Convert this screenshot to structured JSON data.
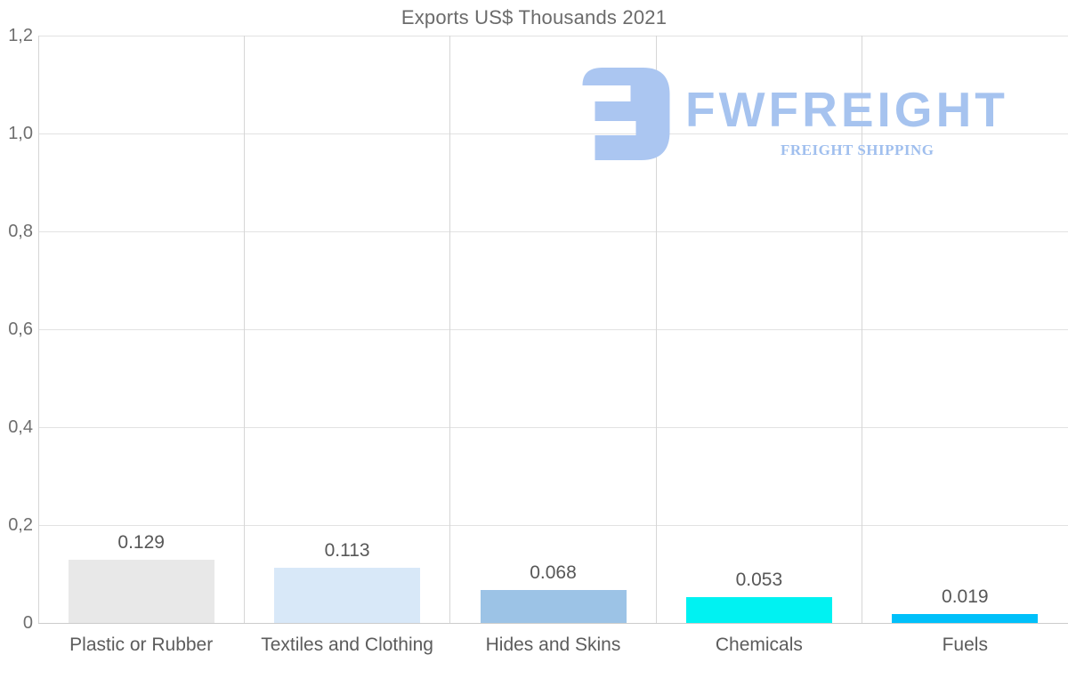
{
  "title": "Exports US$ Thousands 2021",
  "logo": {
    "name": "FWFREIGHT",
    "tagline": "FREIGHT SHIPPING",
    "icon_color": "#abc6f1",
    "text_color": "#a6c3ef"
  },
  "chart_data": {
    "type": "bar",
    "title": "Exports US$ Thousands 2021",
    "categories": [
      "Plastic or Rubber",
      "Textiles and Clothing",
      "Hides and Skins",
      "Chemicals",
      "Fuels"
    ],
    "values": [
      0.129,
      0.113,
      0.068,
      0.053,
      0.019
    ],
    "value_labels": [
      "0.129",
      "0.113",
      "0.068",
      "0.053",
      "0.019"
    ],
    "bar_colors": [
      "#e8e8e8",
      "#d8e8f8",
      "#9cc3e6",
      "#00f2f2",
      "#00c0fa"
    ],
    "xlabel": "",
    "ylabel": "",
    "ylim": [
      0,
      1.2
    ],
    "ytick_step": 0.2,
    "ytick_labels": [
      "0",
      "0,2",
      "0,4",
      "0,6",
      "0,8",
      "1,0",
      "1,2"
    ],
    "grid": true,
    "legend": false,
    "value_label_position": "above-bar"
  }
}
